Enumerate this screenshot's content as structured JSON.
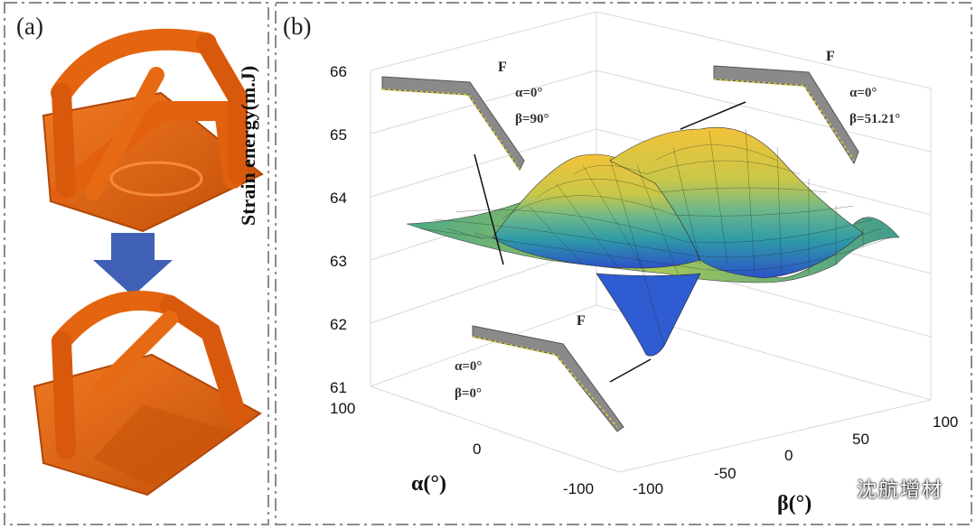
{
  "panel_a": {
    "label": "(a)",
    "colors": {
      "part": "#e2600e",
      "part_dark": "#b84a05",
      "arrow": "#3f60b5"
    }
  },
  "panel_b": {
    "label": "(b)"
  },
  "chart_data": {
    "type": "surface3d",
    "title": "",
    "zlabel": "Strain energy(m.J)",
    "xlabel": "α(°)",
    "ylabel": "β(°)",
    "zlim": [
      61,
      66
    ],
    "z_ticks": [
      "61",
      "62",
      "63",
      "64",
      "65",
      "66"
    ],
    "alpha_ticks": [
      "100",
      "0",
      "-100"
    ],
    "beta_ticks": [
      "-100",
      "-50",
      "0",
      "50",
      "100"
    ],
    "surface_profile": [
      {
        "alpha": -100,
        "beta": -100,
        "energy": 63.3
      },
      {
        "alpha": 0,
        "beta": 90,
        "energy": 64.6
      },
      {
        "alpha": 0,
        "beta": 51.21,
        "energy": 65.0
      },
      {
        "alpha": 0,
        "beta": 0,
        "energy": 61.3
      },
      {
        "alpha": 100,
        "beta": 100,
        "energy": 63.3
      }
    ],
    "annotations": [
      {
        "force": "F",
        "alpha": "α=0°",
        "beta": "β=90°"
      },
      {
        "force": "F",
        "alpha": "α=0°",
        "beta": "β=51.21°"
      },
      {
        "force": "F",
        "alpha": "α=0°",
        "beta": "β=0°"
      }
    ]
  },
  "watermark": {
    "text": "沈航增材"
  }
}
